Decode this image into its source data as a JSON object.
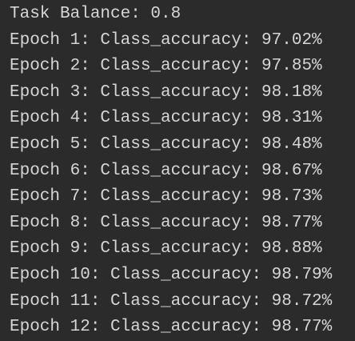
{
  "console": {
    "lines": [
      "Task Balance: 0.8",
      "Epoch 1: Class_accuracy: 97.02%",
      "Epoch 2: Class_accuracy: 97.85%",
      "Epoch 3: Class_accuracy: 98.18%",
      "Epoch 4: Class_accuracy: 98.31%",
      "Epoch 5: Class_accuracy: 98.48%",
      "Epoch 6: Class_accuracy: 98.67%",
      "Epoch 7: Class_accuracy: 98.73%",
      "Epoch 8: Class_accuracy: 98.77%",
      "Epoch 9: Class_accuracy: 98.88%",
      "Epoch 10: Class_accuracy: 98.79%",
      "Epoch 11: Class_accuracy: 98.72%",
      "Epoch 12: Class_accuracy: 98.77%"
    ]
  }
}
